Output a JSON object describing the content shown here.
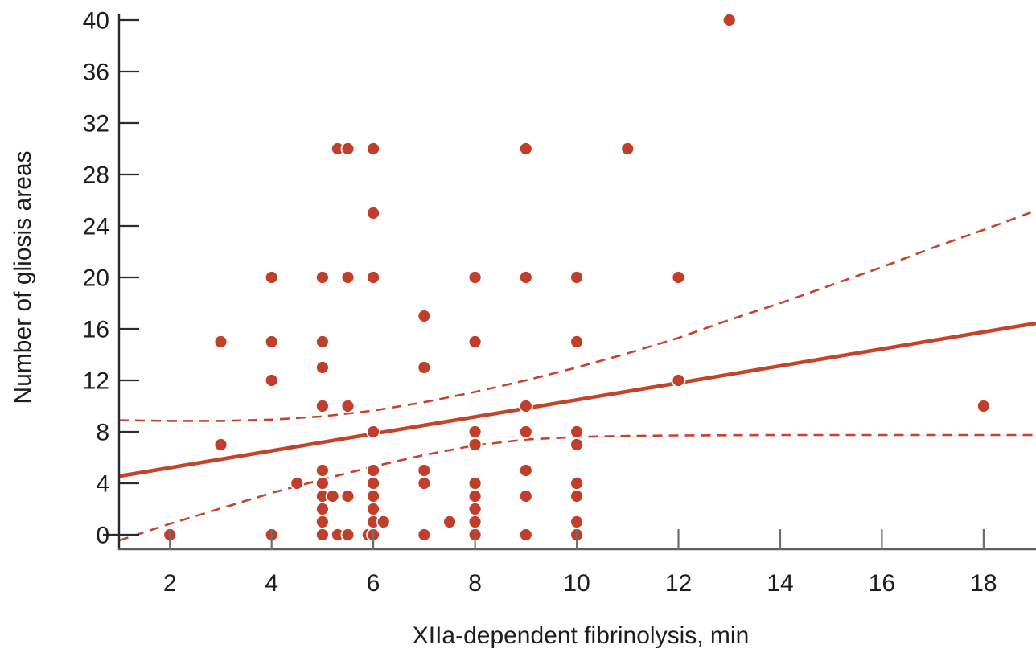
{
  "chart_data": {
    "type": "scatter",
    "title": "",
    "xlabel": "XIIa-dependent fibrinolysis, min",
    "ylabel": "Number of gliosis areas",
    "x_ticks": [
      2,
      4,
      6,
      8,
      10,
      12,
      14,
      16,
      18
    ],
    "y_ticks": [
      0,
      4,
      8,
      12,
      16,
      20,
      24,
      28,
      32,
      36,
      40
    ],
    "xlim": [
      1,
      19.03
    ],
    "ylim": [
      -1.125,
      40.375
    ],
    "grid": false,
    "legend": null,
    "points": [
      [
        2,
        0
      ],
      [
        3,
        7
      ],
      [
        3,
        15
      ],
      [
        4,
        0
      ],
      [
        4,
        12
      ],
      [
        4,
        15
      ],
      [
        4,
        20
      ],
      [
        4.5,
        4
      ],
      [
        5,
        0
      ],
      [
        5,
        1
      ],
      [
        5,
        2
      ],
      [
        5,
        3
      ],
      [
        5,
        4
      ],
      [
        5,
        5
      ],
      [
        5,
        10
      ],
      [
        5,
        13
      ],
      [
        5,
        15
      ],
      [
        5,
        20
      ],
      [
        5.2,
        3
      ],
      [
        5.3,
        0
      ],
      [
        5.3,
        30
      ],
      [
        5.5,
        0
      ],
      [
        5.5,
        3
      ],
      [
        5.5,
        10
      ],
      [
        5.5,
        20
      ],
      [
        5.5,
        30
      ],
      [
        5.9,
        0
      ],
      [
        6,
        0
      ],
      [
        6,
        1
      ],
      [
        6,
        2
      ],
      [
        6,
        3
      ],
      [
        6,
        4
      ],
      [
        6,
        5
      ],
      [
        6,
        8
      ],
      [
        6,
        20
      ],
      [
        6,
        25
      ],
      [
        6,
        30
      ],
      [
        6.2,
        1
      ],
      [
        7,
        0
      ],
      [
        7,
        4
      ],
      [
        7,
        5
      ],
      [
        7,
        13
      ],
      [
        7,
        17
      ],
      [
        7.5,
        1
      ],
      [
        8,
        0
      ],
      [
        8,
        1
      ],
      [
        8,
        2
      ],
      [
        8,
        3
      ],
      [
        8,
        4
      ],
      [
        8,
        7
      ],
      [
        8,
        8
      ],
      [
        8,
        15
      ],
      [
        8,
        20
      ],
      [
        9,
        0
      ],
      [
        9,
        3
      ],
      [
        9,
        5
      ],
      [
        9,
        8
      ],
      [
        9,
        10
      ],
      [
        9,
        20
      ],
      [
        9,
        30
      ],
      [
        10,
        0
      ],
      [
        10,
        1
      ],
      [
        10,
        3
      ],
      [
        10,
        4
      ],
      [
        10,
        7
      ],
      [
        10,
        8
      ],
      [
        10,
        15
      ],
      [
        10,
        20
      ],
      [
        11,
        30
      ],
      [
        12,
        12
      ],
      [
        12,
        20
      ],
      [
        13,
        40
      ],
      [
        18,
        10
      ]
    ],
    "regression_line": {
      "x1": 1,
      "y1": 4.55,
      "x2": 19.03,
      "y2": 16.44
    },
    "ci_upper": [
      [
        1,
        8.9
      ],
      [
        2,
        8.85
      ],
      [
        3,
        8.85
      ],
      [
        4,
        8.95
      ],
      [
        5,
        9.2
      ],
      [
        6,
        9.65
      ],
      [
        7,
        10.3
      ],
      [
        8,
        11.1
      ],
      [
        9,
        12.0
      ],
      [
        10,
        13.0
      ],
      [
        11,
        14.1
      ],
      [
        12,
        15.3
      ],
      [
        13,
        16.7
      ],
      [
        14,
        18.0
      ],
      [
        15,
        19.4
      ],
      [
        16,
        20.8
      ],
      [
        17,
        22.3
      ],
      [
        18,
        23.7
      ],
      [
        19.03,
        25.2
      ]
    ],
    "ci_lower": [
      [
        1,
        -0.45
      ],
      [
        2,
        0.85
      ],
      [
        3,
        2.05
      ],
      [
        4,
        3.25
      ],
      [
        5,
        4.3
      ],
      [
        6,
        5.3
      ],
      [
        7,
        6.2
      ],
      [
        8,
        6.95
      ],
      [
        9,
        7.4
      ],
      [
        10,
        7.6
      ],
      [
        11,
        7.68
      ],
      [
        12,
        7.72
      ],
      [
        14,
        7.75
      ],
      [
        16,
        7.75
      ],
      [
        19.03,
        7.75
      ]
    ],
    "colors": {
      "point": "#c13e2a",
      "line": "#c5432a",
      "y_axis": "#2b2b2b",
      "x_axis": "#5e5e5e",
      "x_tick": "#6e6e6e",
      "y_tick": "#2b2b2b",
      "text": "#1d1d1b"
    }
  }
}
